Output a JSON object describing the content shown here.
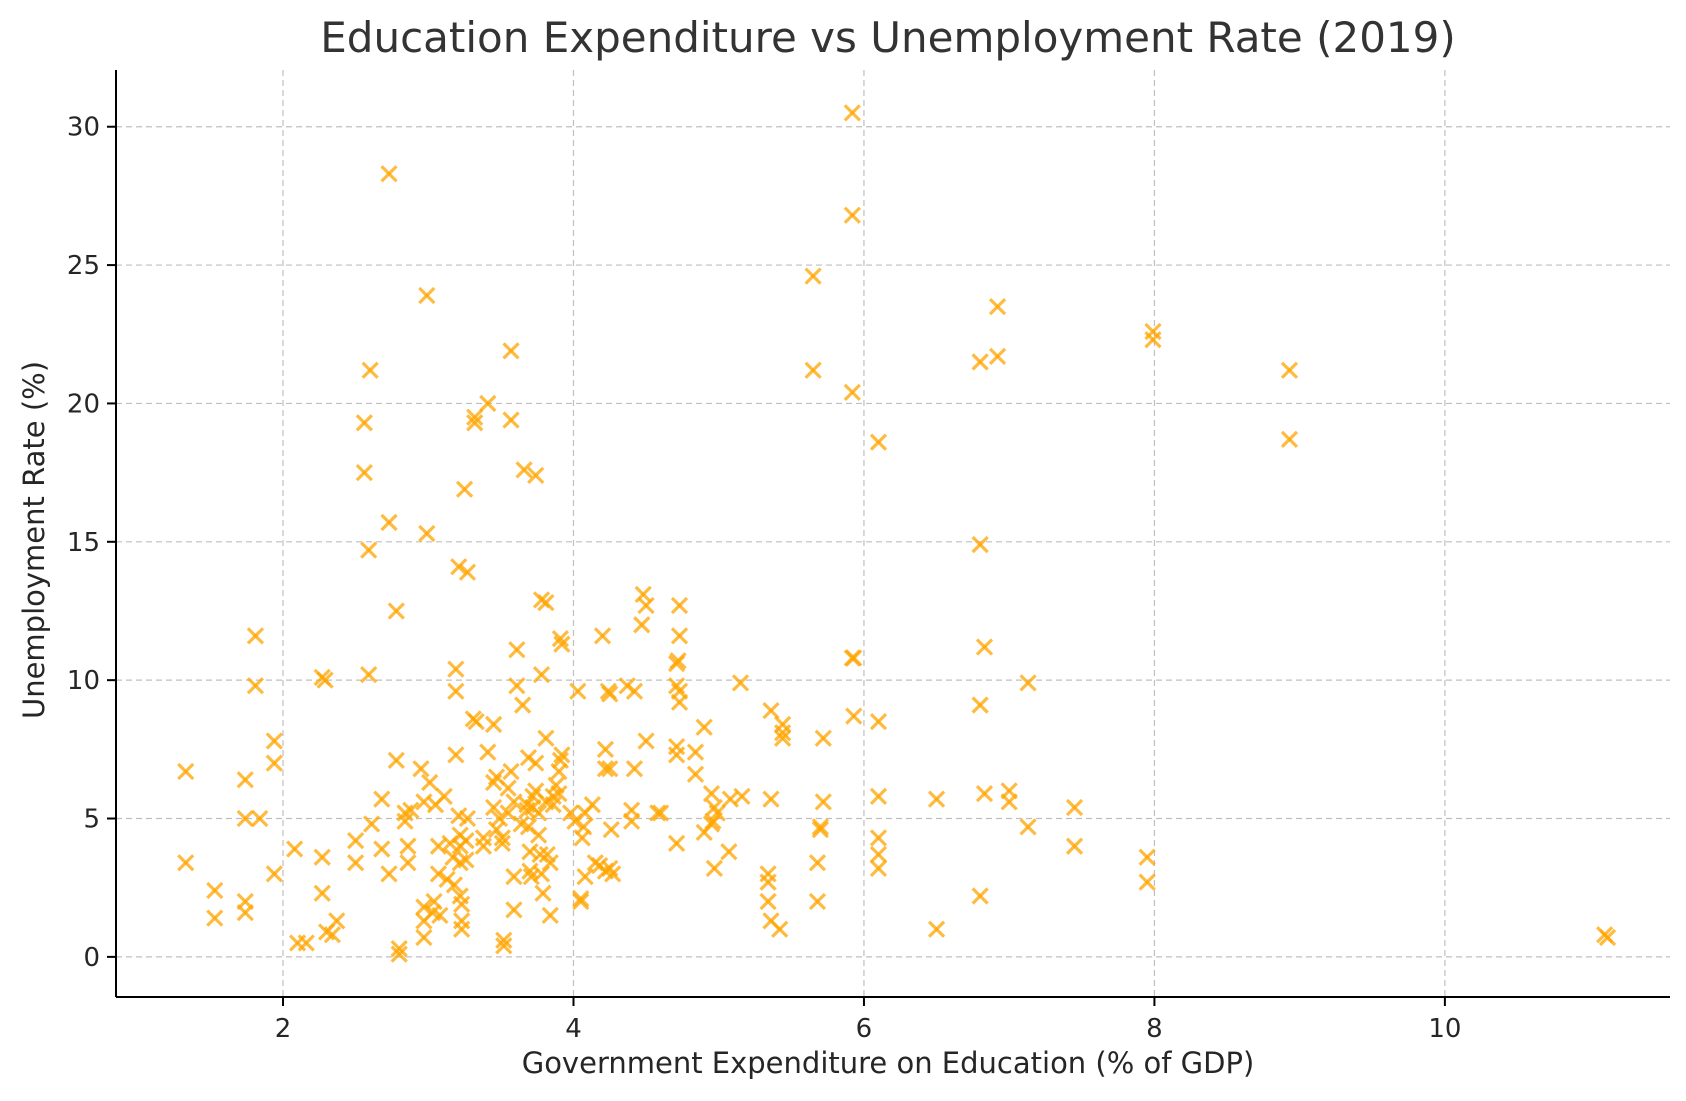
{
  "chart_data": {
    "type": "scatter",
    "title": "Education Expenditure vs Unemployment Rate (2019)",
    "xlabel": "Government Expenditure on Education (% of GDP)",
    "ylabel": "Unemployment Rate (%)",
    "xlim": [
      0.85,
      11.55
    ],
    "ylim": [
      -1.45,
      32.05
    ],
    "xticks": [
      2,
      4,
      6,
      8,
      10
    ],
    "yticks": [
      0,
      5,
      10,
      15,
      20,
      25,
      30
    ],
    "grid": true,
    "marker": "x",
    "color": "#FFA500",
    "points": [
      [
        1.33,
        6.7
      ],
      [
        1.33,
        3.4
      ],
      [
        1.53,
        2.4
      ],
      [
        1.53,
        1.4
      ],
      [
        1.74,
        6.4
      ],
      [
        1.74,
        5.0
      ],
      [
        1.74,
        2.0
      ],
      [
        1.74,
        1.6
      ],
      [
        1.81,
        11.6
      ],
      [
        1.81,
        9.8
      ],
      [
        1.84,
        5.0
      ],
      [
        1.94,
        7.8
      ],
      [
        1.94,
        7.0
      ],
      [
        1.94,
        3.0
      ],
      [
        2.08,
        3.9
      ],
      [
        2.1,
        0.5
      ],
      [
        2.16,
        0.5
      ],
      [
        2.27,
        10.1
      ],
      [
        2.29,
        10.0
      ],
      [
        2.27,
        3.6
      ],
      [
        2.27,
        2.3
      ],
      [
        2.3,
        0.9
      ],
      [
        2.34,
        0.8
      ],
      [
        2.37,
        1.3
      ],
      [
        2.5,
        4.2
      ],
      [
        2.5,
        3.4
      ],
      [
        2.56,
        19.3
      ],
      [
        2.56,
        17.5
      ],
      [
        2.6,
        21.2
      ],
      [
        2.59,
        14.7
      ],
      [
        2.59,
        10.2
      ],
      [
        2.61,
        4.8
      ],
      [
        2.68,
        5.7
      ],
      [
        2.68,
        3.9
      ],
      [
        2.73,
        28.3
      ],
      [
        2.73,
        15.7
      ],
      [
        2.73,
        3.0
      ],
      [
        2.78,
        12.5
      ],
      [
        2.78,
        7.1
      ],
      [
        2.8,
        0.3
      ],
      [
        2.8,
        0.1
      ],
      [
        2.84,
        5.2
      ],
      [
        2.84,
        4.9
      ],
      [
        2.86,
        4.0
      ],
      [
        2.86,
        3.4
      ],
      [
        2.88,
        5.3
      ],
      [
        2.95,
        6.8
      ],
      [
        2.97,
        5.6
      ],
      [
        2.97,
        1.8
      ],
      [
        2.97,
        1.3
      ],
      [
        2.97,
        0.7
      ],
      [
        2.99,
        23.9
      ],
      [
        2.99,
        15.3
      ],
      [
        3.01,
        6.3
      ],
      [
        3.03,
        1.6
      ],
      [
        3.04,
        2.0
      ],
      [
        3.05,
        5.5
      ],
      [
        3.07,
        4.0
      ],
      [
        3.07,
        3.0
      ],
      [
        3.08,
        1.5
      ],
      [
        3.11,
        5.8
      ],
      [
        3.13,
        2.8
      ],
      [
        3.15,
        4.1
      ],
      [
        3.17,
        3.6
      ],
      [
        3.18,
        2.6
      ],
      [
        3.19,
        10.4
      ],
      [
        3.19,
        9.6
      ],
      [
        3.19,
        7.3
      ],
      [
        3.21,
        14.1
      ],
      [
        3.21,
        5.1
      ],
      [
        3.22,
        4.4
      ],
      [
        3.22,
        4.0
      ],
      [
        3.22,
        3.4
      ],
      [
        3.22,
        2.2
      ],
      [
        3.23,
        1.9
      ],
      [
        3.23,
        1.3
      ],
      [
        3.23,
        1.0
      ],
      [
        3.25,
        16.9
      ],
      [
        3.27,
        13.9
      ],
      [
        3.27,
        5.0
      ],
      [
        3.26,
        4.2
      ],
      [
        3.26,
        3.5
      ],
      [
        3.32,
        19.5
      ],
      [
        3.32,
        19.3
      ],
      [
        3.31,
        8.6
      ],
      [
        3.33,
        8.5
      ],
      [
        3.38,
        4.3
      ],
      [
        3.38,
        4.0
      ],
      [
        3.41,
        20.0
      ],
      [
        3.41,
        7.4
      ],
      [
        3.45,
        8.4
      ],
      [
        3.45,
        6.3
      ],
      [
        3.45,
        5.4
      ],
      [
        3.47,
        6.5
      ],
      [
        3.47,
        4.6
      ],
      [
        3.49,
        5.0
      ],
      [
        3.51,
        4.3
      ],
      [
        3.51,
        4.1
      ],
      [
        3.52,
        0.6
      ],
      [
        3.52,
        0.4
      ],
      [
        3.55,
        6.1
      ],
      [
        3.55,
        5.2
      ],
      [
        3.57,
        21.9
      ],
      [
        3.57,
        19.4
      ],
      [
        3.57,
        6.7
      ],
      [
        3.59,
        5.6
      ],
      [
        3.59,
        2.9
      ],
      [
        3.59,
        1.7
      ],
      [
        3.61,
        11.1
      ],
      [
        3.61,
        9.8
      ],
      [
        3.64,
        4.8
      ],
      [
        3.65,
        9.1
      ],
      [
        3.66,
        17.6
      ],
      [
        3.68,
        5.5
      ],
      [
        3.68,
        5.3
      ],
      [
        3.69,
        7.2
      ],
      [
        3.69,
        4.7
      ],
      [
        3.7,
        3.8
      ],
      [
        3.7,
        3.1
      ],
      [
        3.71,
        2.9
      ],
      [
        3.72,
        5.8
      ],
      [
        3.72,
        5.4
      ],
      [
        3.74,
        17.4
      ],
      [
        3.74,
        7.0
      ],
      [
        3.74,
        6.0
      ],
      [
        3.76,
        5.2
      ],
      [
        3.76,
        4.4
      ],
      [
        3.77,
        3.7
      ],
      [
        3.78,
        3.0
      ],
      [
        3.78,
        12.9
      ],
      [
        3.78,
        10.2
      ],
      [
        3.79,
        2.3
      ],
      [
        3.81,
        12.8
      ],
      [
        3.81,
        7.9
      ],
      [
        3.81,
        5.6
      ],
      [
        3.82,
        3.7
      ],
      [
        3.84,
        3.4
      ],
      [
        3.84,
        1.5
      ],
      [
        3.86,
        5.8
      ],
      [
        3.86,
        5.5
      ],
      [
        3.88,
        6.2
      ],
      [
        3.9,
        5.9
      ],
      [
        3.9,
        6.7
      ],
      [
        3.91,
        11.5
      ],
      [
        3.91,
        7.1
      ],
      [
        3.92,
        11.3
      ],
      [
        3.92,
        7.3
      ],
      [
        3.98,
        5.2
      ],
      [
        4.01,
        4.9
      ],
      [
        4.03,
        9.6
      ],
      [
        4.05,
        2.0
      ],
      [
        4.05,
        2.1
      ],
      [
        4.06,
        4.3
      ],
      [
        4.07,
        4.7
      ],
      [
        4.08,
        2.9
      ],
      [
        4.08,
        5.2
      ],
      [
        4.13,
        5.5
      ],
      [
        4.15,
        3.4
      ],
      [
        4.18,
        3.3
      ],
      [
        4.2,
        11.6
      ],
      [
        4.22,
        7.5
      ],
      [
        4.22,
        6.8
      ],
      [
        4.22,
        3.1
      ],
      [
        4.24,
        9.6
      ],
      [
        4.25,
        9.5
      ],
      [
        4.25,
        6.8
      ],
      [
        4.25,
        3.2
      ],
      [
        4.26,
        4.6
      ],
      [
        4.27,
        3.0
      ],
      [
        4.37,
        9.8
      ],
      [
        4.4,
        5.3
      ],
      [
        4.4,
        4.9
      ],
      [
        4.42,
        9.6
      ],
      [
        4.42,
        6.8
      ],
      [
        4.47,
        12.0
      ],
      [
        4.48,
        13.1
      ],
      [
        4.5,
        12.7
      ],
      [
        4.5,
        7.8
      ],
      [
        4.58,
        5.2
      ],
      [
        4.6,
        5.2
      ],
      [
        4.71,
        10.6
      ],
      [
        4.71,
        9.8
      ],
      [
        4.71,
        7.6
      ],
      [
        4.71,
        7.3
      ],
      [
        4.71,
        4.1
      ],
      [
        4.72,
        10.7
      ],
      [
        4.73,
        9.6
      ],
      [
        4.73,
        9.2
      ],
      [
        4.73,
        12.7
      ],
      [
        4.73,
        11.6
      ],
      [
        4.84,
        7.4
      ],
      [
        4.84,
        6.6
      ],
      [
        4.9,
        8.3
      ],
      [
        4.9,
        4.5
      ],
      [
        4.95,
        4.8
      ],
      [
        4.95,
        5.9
      ],
      [
        4.96,
        4.9
      ],
      [
        4.97,
        5.4
      ],
      [
        4.97,
        3.2
      ],
      [
        4.99,
        5.2
      ],
      [
        5.07,
        3.8
      ],
      [
        5.08,
        5.7
      ],
      [
        5.15,
        9.9
      ],
      [
        5.16,
        5.8
      ],
      [
        5.34,
        3.0
      ],
      [
        5.34,
        2.7
      ],
      [
        5.34,
        2.0
      ],
      [
        5.36,
        8.9
      ],
      [
        5.36,
        5.7
      ],
      [
        5.36,
        1.3
      ],
      [
        5.42,
        1.0
      ],
      [
        5.44,
        8.4
      ],
      [
        5.44,
        8.1
      ],
      [
        5.44,
        7.9
      ],
      [
        5.65,
        24.6
      ],
      [
        5.65,
        21.2
      ],
      [
        5.68,
        3.4
      ],
      [
        5.68,
        2.0
      ],
      [
        5.7,
        4.7
      ],
      [
        5.7,
        4.6
      ],
      [
        5.72,
        7.9
      ],
      [
        5.72,
        5.6
      ],
      [
        5.92,
        30.5
      ],
      [
        5.92,
        26.8
      ],
      [
        5.92,
        20.4
      ],
      [
        5.92,
        10.8
      ],
      [
        5.93,
        10.8
      ],
      [
        5.93,
        8.7
      ],
      [
        6.1,
        18.6
      ],
      [
        6.1,
        8.5
      ],
      [
        6.1,
        5.8
      ],
      [
        6.1,
        4.3
      ],
      [
        6.1,
        3.7
      ],
      [
        6.1,
        3.2
      ],
      [
        6.5,
        5.7
      ],
      [
        6.5,
        1.0
      ],
      [
        6.8,
        21.5
      ],
      [
        6.8,
        14.9
      ],
      [
        6.8,
        9.1
      ],
      [
        6.8,
        2.2
      ],
      [
        6.83,
        11.2
      ],
      [
        6.83,
        5.9
      ],
      [
        6.92,
        23.5
      ],
      [
        6.92,
        21.7
      ],
      [
        7.0,
        6.0
      ],
      [
        7.0,
        5.6
      ],
      [
        7.13,
        9.9
      ],
      [
        7.13,
        4.7
      ],
      [
        7.45,
        5.4
      ],
      [
        7.45,
        4.0
      ],
      [
        7.95,
        3.6
      ],
      [
        7.95,
        2.7
      ],
      [
        7.99,
        22.6
      ],
      [
        7.99,
        22.3
      ],
      [
        8.93,
        21.2
      ],
      [
        8.93,
        18.7
      ],
      [
        11.1,
        0.8
      ],
      [
        11.12,
        0.7
      ]
    ]
  }
}
